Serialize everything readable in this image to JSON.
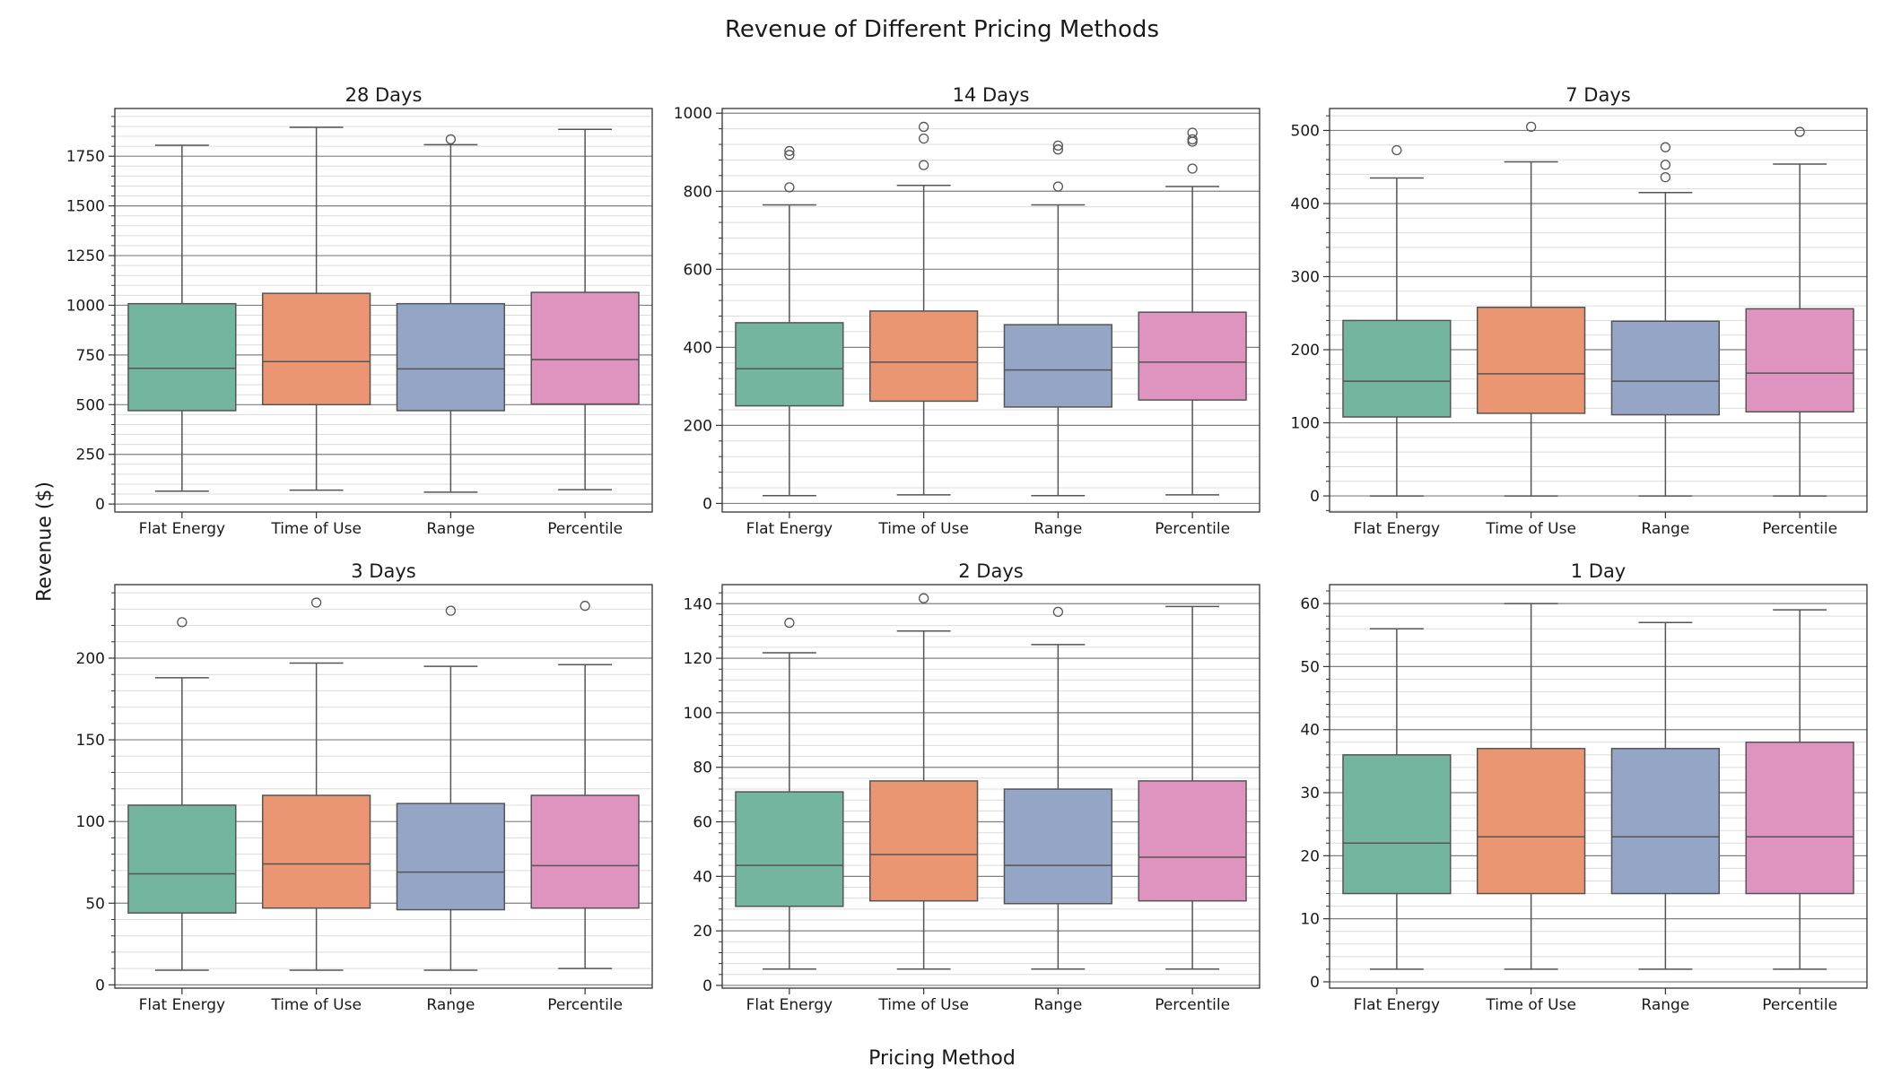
{
  "figure": {
    "title": "Revenue of Different Pricing Methods",
    "ylabel": "Revenue ($)",
    "xlabel": "Pricing Method"
  },
  "colors": {
    "Flat Energy": "#73b59f",
    "Time of Use": "#ea9673",
    "Range": "#95a5c6",
    "Percentile": "#de94bf",
    "line": "#555555",
    "grid_major": "#808080",
    "grid_minor": "#dcdcdc"
  },
  "chart_data": [
    {
      "type": "box",
      "title": "28 Days",
      "categories": [
        "Flat Energy",
        "Time of Use",
        "Range",
        "Percentile"
      ],
      "ylim": [
        -40,
        1990
      ],
      "yticks": [
        0,
        250,
        500,
        750,
        1000,
        1250,
        1500,
        1750
      ],
      "minor_step": 50,
      "grid": true,
      "boxes": [
        {
          "whislo": 65,
          "q1": 470,
          "med": 683,
          "q3": 1008,
          "whishi": 1805,
          "fliers": []
        },
        {
          "whislo": 70,
          "q1": 500,
          "med": 717,
          "q3": 1060,
          "whishi": 1895,
          "fliers": []
        },
        {
          "whislo": 60,
          "q1": 470,
          "med": 680,
          "q3": 1008,
          "whishi": 1808,
          "fliers": [
            1835
          ]
        },
        {
          "whislo": 72,
          "q1": 503,
          "med": 727,
          "q3": 1065,
          "whishi": 1885,
          "fliers": []
        }
      ]
    },
    {
      "type": "box",
      "title": "14 Days",
      "categories": [
        "Flat Energy",
        "Time of Use",
        "Range",
        "Percentile"
      ],
      "ylim": [
        -22,
        1012
      ],
      "yticks": [
        0,
        200,
        400,
        600,
        800,
        1000
      ],
      "minor_step": 40,
      "grid": true,
      "boxes": [
        {
          "whislo": 20,
          "q1": 250,
          "med": 345,
          "q3": 463,
          "whishi": 765,
          "fliers": [
            810,
            893,
            903
          ]
        },
        {
          "whislo": 22,
          "q1": 262,
          "med": 362,
          "q3": 493,
          "whishi": 815,
          "fliers": [
            867,
            935,
            965
          ]
        },
        {
          "whislo": 20,
          "q1": 247,
          "med": 342,
          "q3": 458,
          "whishi": 765,
          "fliers": [
            812,
            907,
            917
          ]
        },
        {
          "whislo": 22,
          "q1": 265,
          "med": 362,
          "q3": 490,
          "whishi": 812,
          "fliers": [
            858,
            927,
            933,
            950
          ]
        }
      ]
    },
    {
      "type": "box",
      "title": "7 Days",
      "categories": [
        "Flat Energy",
        "Time of Use",
        "Range",
        "Percentile"
      ],
      "ylim": [
        -22,
        530
      ],
      "yticks": [
        0,
        100,
        200,
        300,
        400,
        500
      ],
      "minor_step": 20,
      "grid": true,
      "boxes": [
        {
          "whislo": 0,
          "q1": 108,
          "med": 157,
          "q3": 240,
          "whishi": 435,
          "fliers": [
            473
          ]
        },
        {
          "whislo": 0,
          "q1": 113,
          "med": 167,
          "q3": 258,
          "whishi": 457,
          "fliers": [
            505
          ]
        },
        {
          "whislo": 0,
          "q1": 111,
          "med": 157,
          "q3": 239,
          "whishi": 415,
          "fliers": [
            436,
            453,
            477
          ]
        },
        {
          "whislo": 0,
          "q1": 115,
          "med": 168,
          "q3": 256,
          "whishi": 454,
          "fliers": [
            498
          ]
        }
      ]
    },
    {
      "type": "box",
      "title": "3 Days",
      "categories": [
        "Flat Energy",
        "Time of Use",
        "Range",
        "Percentile"
      ],
      "ylim": [
        -2,
        245
      ],
      "yticks": [
        0,
        50,
        100,
        150,
        200
      ],
      "minor_step": 10,
      "grid": true,
      "boxes": [
        {
          "whislo": 9,
          "q1": 44,
          "med": 68,
          "q3": 110,
          "whishi": 188,
          "fliers": [
            222
          ]
        },
        {
          "whislo": 9,
          "q1": 47,
          "med": 74,
          "q3": 116,
          "whishi": 197,
          "fliers": [
            234
          ]
        },
        {
          "whislo": 9,
          "q1": 46,
          "med": 69,
          "q3": 111,
          "whishi": 195,
          "fliers": [
            229
          ]
        },
        {
          "whislo": 10,
          "q1": 47,
          "med": 73,
          "q3": 116,
          "whishi": 196,
          "fliers": [
            232
          ]
        }
      ]
    },
    {
      "type": "box",
      "title": "2 Days",
      "categories": [
        "Flat Energy",
        "Time of Use",
        "Range",
        "Percentile"
      ],
      "ylim": [
        -1,
        147
      ],
      "yticks": [
        0,
        20,
        40,
        60,
        80,
        100,
        120,
        140
      ],
      "minor_step": 4,
      "grid": true,
      "boxes": [
        {
          "whislo": 6,
          "q1": 29,
          "med": 44,
          "q3": 71,
          "whishi": 122,
          "fliers": [
            133
          ]
        },
        {
          "whislo": 6,
          "q1": 31,
          "med": 48,
          "q3": 75,
          "whishi": 130,
          "fliers": [
            142
          ]
        },
        {
          "whislo": 6,
          "q1": 30,
          "med": 44,
          "q3": 72,
          "whishi": 125,
          "fliers": [
            137
          ]
        },
        {
          "whislo": 6,
          "q1": 31,
          "med": 47,
          "q3": 75,
          "whishi": 139,
          "fliers": []
        }
      ]
    },
    {
      "type": "box",
      "title": "1 Day",
      "categories": [
        "Flat Energy",
        "Time of Use",
        "Range",
        "Percentile"
      ],
      "ylim": [
        -1,
        63
      ],
      "yticks": [
        0,
        10,
        20,
        30,
        40,
        50,
        60
      ],
      "minor_step": 2,
      "grid": true,
      "boxes": [
        {
          "whislo": 2,
          "q1": 14,
          "med": 22,
          "q3": 36,
          "whishi": 56,
          "fliers": []
        },
        {
          "whislo": 2,
          "q1": 14,
          "med": 23,
          "q3": 37,
          "whishi": 60,
          "fliers": []
        },
        {
          "whislo": 2,
          "q1": 14,
          "med": 23,
          "q3": 37,
          "whishi": 57,
          "fliers": []
        },
        {
          "whislo": 2,
          "q1": 14,
          "med": 23,
          "q3": 38,
          "whishi": 59,
          "fliers": []
        }
      ]
    }
  ]
}
